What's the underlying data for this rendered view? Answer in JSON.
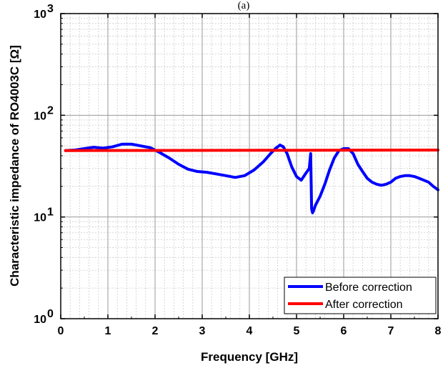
{
  "top_text": "(a)",
  "chart_data": {
    "type": "line",
    "xlabel": "Frequency [GHz]",
    "ylabel": "Characteristic impedance of RO4003C [Ω]",
    "x_ticks": [
      "0",
      "1",
      "2",
      "3",
      "4",
      "5",
      "6",
      "7",
      "8"
    ],
    "y_ticks": [
      {
        "value": 1,
        "base": "10",
        "exp": "0"
      },
      {
        "value": 10,
        "base": "10",
        "exp": "1"
      },
      {
        "value": 100,
        "base": "10",
        "exp": "2"
      },
      {
        "value": 1000,
        "base": "10",
        "exp": "3"
      }
    ],
    "xlim": [
      0,
      8
    ],
    "ylim": [
      1,
      1000
    ],
    "y_scale": "log",
    "grid": true,
    "legend_position": "bottom-right",
    "series": [
      {
        "name": "Before correction",
        "color": "#0000ff",
        "x": [
          0.1,
          0.3,
          0.5,
          0.7,
          0.9,
          1.1,
          1.3,
          1.5,
          1.7,
          1.9,
          2.1,
          2.3,
          2.5,
          2.7,
          2.9,
          3.1,
          3.3,
          3.5,
          3.7,
          3.9,
          4.1,
          4.3,
          4.45,
          4.55,
          4.65,
          4.72,
          4.8,
          4.9,
          5.0,
          5.1,
          5.2,
          5.27,
          5.3,
          5.32,
          5.34,
          5.36,
          5.4,
          5.5,
          5.6,
          5.7,
          5.8,
          5.9,
          6.0,
          6.1,
          6.2,
          6.3,
          6.4,
          6.5,
          6.6,
          6.7,
          6.8,
          6.9,
          7.0,
          7.1,
          7.2,
          7.3,
          7.4,
          7.5,
          7.6,
          7.7,
          7.8,
          7.9,
          8.0
        ],
        "y": [
          45,
          45.5,
          47,
          48.5,
          47.5,
          49,
          52,
          52,
          50,
          48,
          43,
          38,
          33,
          29.5,
          28,
          27.5,
          26.5,
          25.5,
          24.5,
          25.5,
          29,
          35,
          42,
          47,
          51,
          49,
          42,
          31,
          25,
          23,
          27,
          30,
          42,
          12,
          11,
          11.5,
          13,
          16,
          21,
          29,
          38,
          45,
          47,
          47,
          42,
          33,
          28,
          24,
          22,
          21,
          20.5,
          21,
          22,
          24,
          25,
          25.5,
          25.5,
          25,
          24,
          23,
          22,
          20,
          18.5
        ]
      },
      {
        "name": "After correction",
        "color": "#ff0000",
        "x": [
          0.1,
          8.0
        ],
        "y": [
          45,
          45.5
        ]
      }
    ]
  }
}
